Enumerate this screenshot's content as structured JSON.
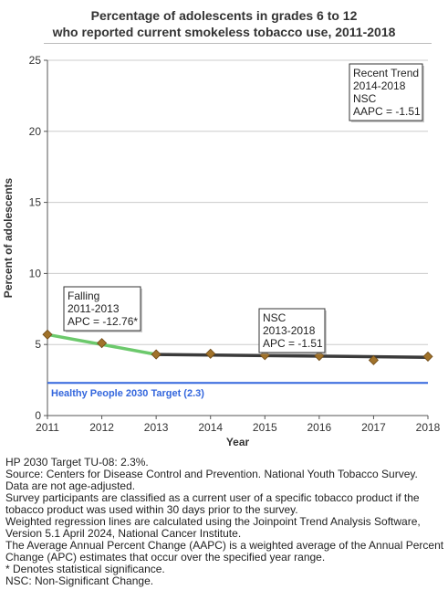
{
  "title_line1": "Percentage of adolescents in grades 6 to 12",
  "title_line2": "who reported current smokeless tobacco use, 2011-2018",
  "chart_data": {
    "type": "line",
    "xlabel": "Year",
    "ylabel": "Percent of adolescents",
    "x": [
      2011,
      2012,
      2013,
      2014,
      2015,
      2016,
      2017,
      2018
    ],
    "xlim": [
      2011,
      2018
    ],
    "ylim": [
      0,
      25
    ],
    "yticks": [
      0,
      5,
      10,
      15,
      20,
      25
    ],
    "grid": true,
    "series": [
      {
        "values": [
          5.7,
          5.1,
          4.3,
          4.35,
          4.25,
          4.2,
          3.9,
          4.15
        ],
        "color": "#a0722a"
      }
    ],
    "trend_segments": [
      {
        "x": [
          2011,
          2013
        ],
        "y": [
          5.7,
          4.3
        ],
        "color": "#6cc96c"
      },
      {
        "x": [
          2013,
          2018
        ],
        "y": [
          4.3,
          4.1
        ],
        "color": "#3a3a3a"
      }
    ],
    "target": {
      "value": 2.3,
      "label": "Healthy People 2030 Target (2.3)",
      "color": "#3366dd"
    },
    "annotations": [
      {
        "lines": [
          "Falling",
          "2011-2013",
          "APC = -12.76*"
        ]
      },
      {
        "lines": [
          "NSC",
          "2013-2018",
          "APC = -1.51"
        ]
      },
      {
        "lines": [
          "Recent Trend",
          "2014-2018",
          "NSC",
          "AAPC = -1.51"
        ]
      }
    ]
  },
  "footnotes": [
    "HP 2030 Target TU-08: 2.3%.",
    "Source: Centers for Disease Control and Prevention. National Youth Tobacco Survey.",
    "Data are not age-adjusted.",
    "Survey participants are classified as a current user of a specific tobacco product if the tobacco product was used within 30 days prior to the survey.",
    "Weighted regression lines are calculated using the Joinpoint Trend Analysis Software, Version 5.1 April 2024, National Cancer Institute.",
    "The Average Annual Percent Change (AAPC) is a weighted average of the Annual Percent Change (APC) estimates that occur over the specified year range.",
    "* Denotes statistical significance.",
    "NSC: Non-Significant Change."
  ]
}
